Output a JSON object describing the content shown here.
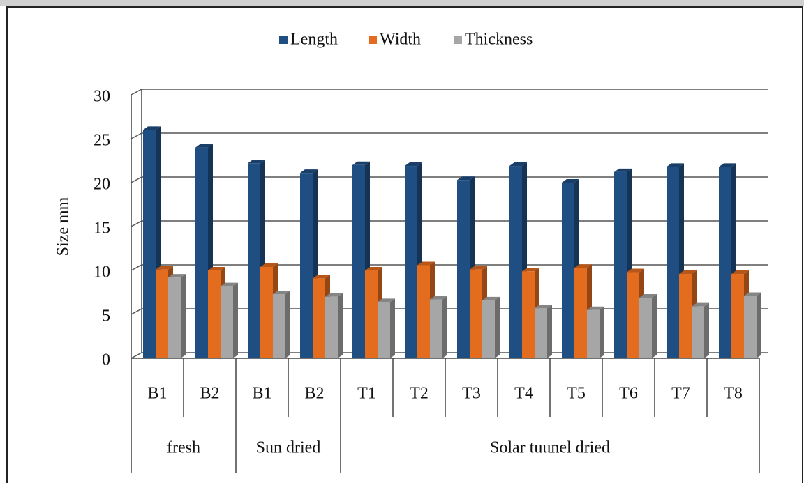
{
  "chart_data": {
    "type": "bar3d",
    "y_label": "Size mm",
    "groups": [
      {
        "name": "fresh",
        "categories": [
          "B1",
          "B2"
        ]
      },
      {
        "name": "Sun dried",
        "categories": [
          "B1",
          "B2"
        ]
      },
      {
        "name": "Solar tuunel dried",
        "categories": [
          "T1",
          "T2",
          "T3",
          "T4",
          "T5",
          "T6",
          "T7",
          "T8"
        ]
      }
    ],
    "series": [
      {
        "name": "Length",
        "color": "#1f4e82",
        "values": [
          26,
          24,
          22.2,
          21.1,
          22,
          21.9,
          20.3,
          21.9,
          20,
          21.2,
          21.8,
          21.8
        ]
      },
      {
        "name": "Width",
        "color": "#e46c1e",
        "values": [
          10.1,
          10,
          10.4,
          9.1,
          10,
          10.6,
          10.1,
          9.9,
          10.3,
          9.8,
          9.6,
          9.6
        ]
      },
      {
        "name": "Thickness",
        "color": "#a6a6a6",
        "values": [
          9.2,
          8.2,
          7.3,
          7.0,
          6.4,
          6.7,
          6.6,
          5.7,
          5.5,
          6.9,
          5.9,
          7.1
        ]
      }
    ],
    "ylim": [
      0,
      30
    ],
    "yticks": [
      0,
      5,
      10,
      15,
      20,
      25,
      30
    ],
    "grid": true,
    "legend": "top"
  }
}
